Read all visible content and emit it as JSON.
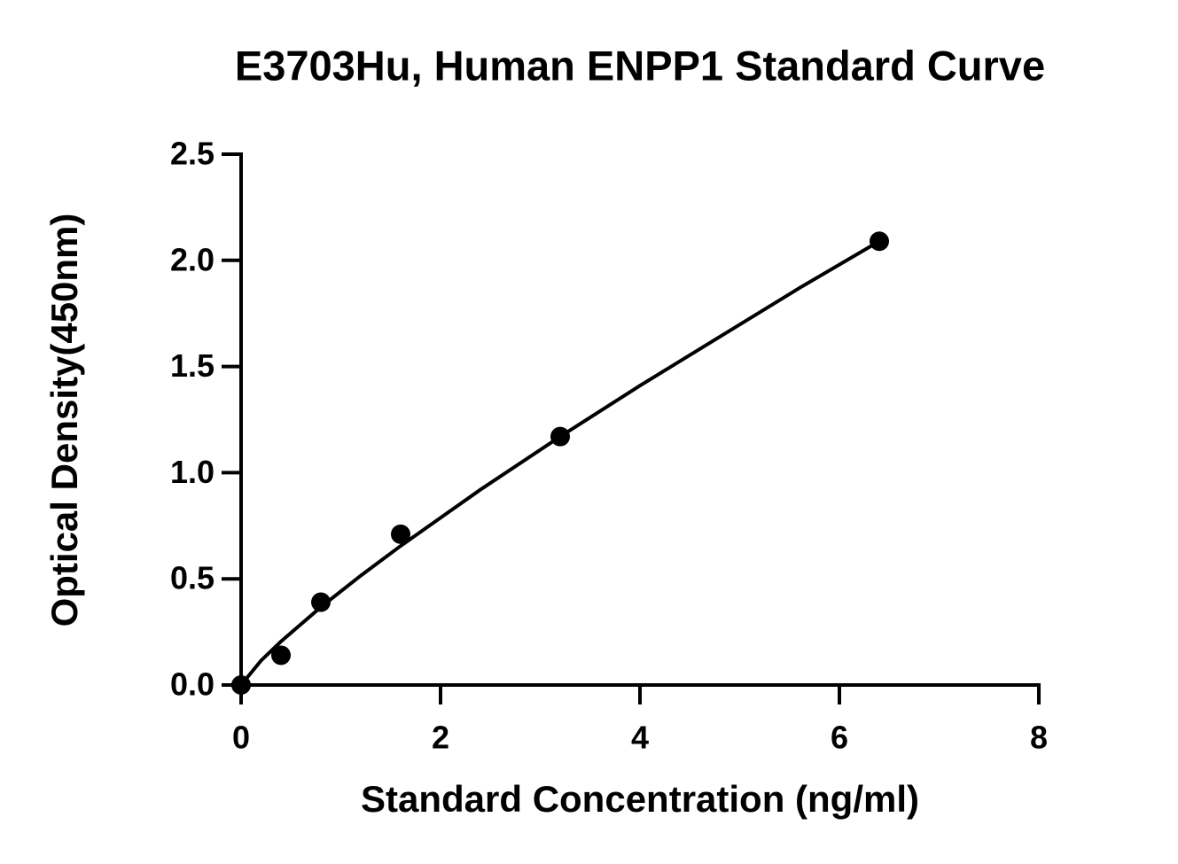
{
  "chart_data": {
    "type": "scatter",
    "title": "E3703Hu, Human ENPP1 Standard Curve",
    "x_label": "Standard Concentration (ng/ml)",
    "y_label": "Optical Density(450nm)",
    "series": [
      {
        "color": "#000000",
        "x": [
          0,
          0.4,
          0.8,
          1.6,
          3.2,
          6.4
        ],
        "values": [
          0,
          0.14,
          0.39,
          0.71,
          1.17,
          2.09
        ]
      }
    ],
    "fit": {
      "color": "#000000",
      "x": [
        0,
        0.2,
        0.4,
        0.8,
        1.2,
        1.6,
        2.4,
        3.2,
        4,
        4.8,
        5.6,
        6.4
      ],
      "values": [
        0,
        0.115,
        0.205,
        0.367,
        0.515,
        0.655,
        0.92,
        1.17,
        1.41,
        1.64,
        1.87,
        2.09
      ]
    },
    "xlim": [
      0,
      8
    ],
    "xticks": [
      0,
      2,
      4,
      6,
      8
    ],
    "ylim": [
      0,
      2.5
    ],
    "yticks": [
      {
        "value": 0,
        "label": "0.0"
      },
      0.5,
      {
        "value": 1,
        "label": "1.0"
      },
      1.5,
      {
        "value": 2,
        "label": "2.0"
      },
      2.5
    ],
    "grid": false
  }
}
